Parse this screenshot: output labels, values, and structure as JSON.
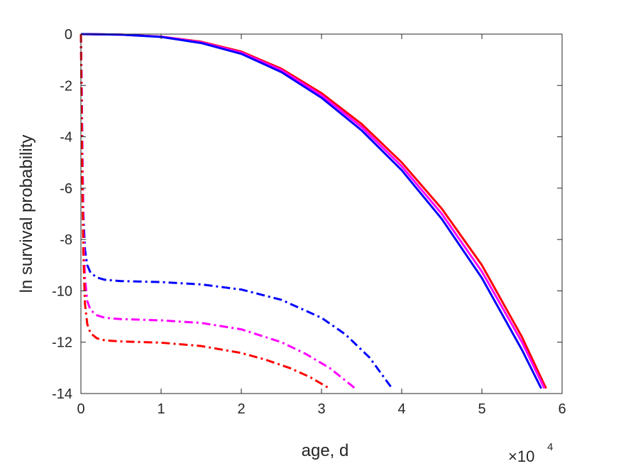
{
  "chart_data": {
    "type": "line",
    "title": "",
    "xlabel": "age, d",
    "ylabel": "ln survival probability",
    "x_multiplier": "×10",
    "x_exponent": "4",
    "xlim": [
      0,
      60000
    ],
    "ylim": [
      -14,
      0
    ],
    "xticks": [
      0,
      10000,
      20000,
      30000,
      40000,
      50000,
      60000
    ],
    "xtick_labels": [
      "0",
      "1",
      "2",
      "3",
      "4",
      "5",
      "6"
    ],
    "yticks": [
      0,
      -2,
      -4,
      -6,
      -8,
      -10,
      -12,
      -14
    ],
    "ytick_labels": [
      "0",
      "-2",
      "-4",
      "-6",
      "-8",
      "-10",
      "-12",
      "-14"
    ],
    "grid": false,
    "legend": "none",
    "series": [
      {
        "color": "#ff0000",
        "style": "solid",
        "x": [
          0,
          5000,
          10000,
          15000,
          20000,
          25000,
          30000,
          35000,
          40000,
          45000,
          50000,
          55000,
          58000
        ],
        "y": [
          0,
          -0.02,
          -0.1,
          -0.3,
          -0.68,
          -1.35,
          -2.3,
          -3.5,
          -5.0,
          -6.8,
          -9.0,
          -11.8,
          -13.8
        ]
      },
      {
        "color": "#ff00ff",
        "style": "solid",
        "x": [
          0,
          5000,
          10000,
          15000,
          20000,
          25000,
          30000,
          35000,
          40000,
          45000,
          50000,
          55000,
          57800
        ],
        "y": [
          0,
          -0.02,
          -0.1,
          -0.32,
          -0.72,
          -1.4,
          -2.38,
          -3.62,
          -5.15,
          -7.0,
          -9.25,
          -12.0,
          -13.8
        ]
      },
      {
        "color": "#0000ff",
        "style": "solid",
        "x": [
          0,
          5000,
          10000,
          15000,
          20000,
          25000,
          30000,
          35000,
          40000,
          45000,
          50000,
          55000,
          57400
        ],
        "y": [
          0,
          -0.02,
          -0.11,
          -0.35,
          -0.77,
          -1.48,
          -2.48,
          -3.75,
          -5.3,
          -7.2,
          -9.5,
          -12.3,
          -13.8
        ]
      },
      {
        "color": "#0000ff",
        "style": "dashdot",
        "x": [
          0,
          100,
          200,
          300,
          500,
          800,
          1200,
          2000,
          3000,
          5000,
          10000,
          15000,
          20000,
          25000,
          30000,
          33000,
          36000,
          38800
        ],
        "y": [
          0,
          -2,
          -5,
          -7,
          -8.4,
          -9.0,
          -9.3,
          -9.48,
          -9.57,
          -9.62,
          -9.66,
          -9.75,
          -9.95,
          -10.35,
          -11.05,
          -11.7,
          -12.6,
          -13.8
        ]
      },
      {
        "color": "#ff00ff",
        "style": "dashdot",
        "x": [
          0,
          150,
          300,
          500,
          800,
          1200,
          2000,
          3000,
          5000,
          10000,
          15000,
          20000,
          25000,
          28000,
          31000,
          34200
        ],
        "y": [
          0,
          -4,
          -7.5,
          -9.5,
          -10.4,
          -10.75,
          -10.95,
          -11.05,
          -11.1,
          -11.15,
          -11.25,
          -11.5,
          -12.0,
          -12.45,
          -13.0,
          -13.8
        ]
      },
      {
        "color": "#ff0000",
        "style": "dashdot",
        "x": [
          0,
          150,
          300,
          500,
          800,
          1200,
          2000,
          3000,
          5000,
          10000,
          15000,
          20000,
          23000,
          26000,
          28500,
          31000
        ],
        "y": [
          0,
          -5,
          -8.5,
          -10.5,
          -11.3,
          -11.65,
          -11.85,
          -11.93,
          -11.97,
          -12.02,
          -12.15,
          -12.42,
          -12.68,
          -13.0,
          -13.35,
          -13.8
        ]
      }
    ]
  }
}
